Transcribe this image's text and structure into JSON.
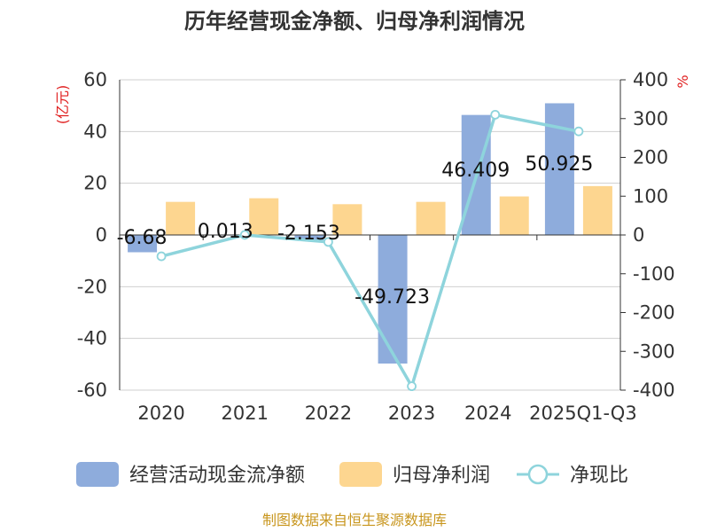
{
  "chart_data": {
    "type": "bar",
    "title": "历年经营现金净额、归母净利润情况",
    "categories": [
      "2020",
      "2021",
      "2022",
      "2023",
      "2024",
      "2025Q1-Q3"
    ],
    "left_axis": {
      "unit": "(亿元)",
      "ticks": [
        "60",
        "40",
        "20",
        "0",
        "-20",
        "-40",
        "-60"
      ],
      "ylim": [
        -60,
        60
      ]
    },
    "right_axis": {
      "unit": "%",
      "ticks": [
        "400",
        "300",
        "200",
        "100",
        "0",
        "-100",
        "-200",
        "-300",
        "-400"
      ],
      "ylim": [
        -400,
        400
      ]
    },
    "series": [
      {
        "name": "经营活动现金流净额",
        "kind": "bar",
        "axis": "left",
        "color": "#8eacdc",
        "values": [
          -6.68,
          0.013,
          -2.153,
          -49.723,
          46.409,
          50.925
        ],
        "labels": [
          "-6.68",
          "0.013",
          "-2.153",
          "-49.723",
          "46.409",
          "50.925"
        ]
      },
      {
        "name": "归母净利润",
        "kind": "bar",
        "axis": "left",
        "color": "#fdd690",
        "values": [
          12.8,
          14.2,
          11.9,
          12.8,
          14.9,
          18.9
        ]
      },
      {
        "name": "净现比",
        "kind": "line",
        "axis": "right",
        "color": "#8ed4dc",
        "values": [
          -55,
          0.1,
          -18,
          -390,
          310,
          267
        ]
      }
    ],
    "grid": true,
    "legend_position": "bottom",
    "source_note": "制图数据来自恒生聚源数据库"
  }
}
